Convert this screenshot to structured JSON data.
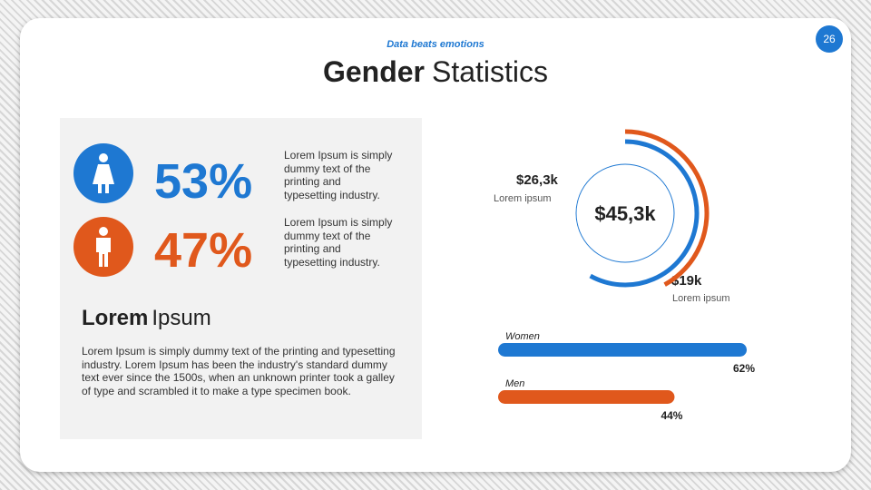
{
  "slide_number": "26",
  "header": {
    "subtitle": "Data beats emotions",
    "title_bold": "Gender",
    "title_light": "Statistics"
  },
  "stats": [
    {
      "percent": "53%",
      "text": "Lorem Ipsum is simply dummy text of the printing and typesetting industry."
    },
    {
      "percent": "47%",
      "text": "Lorem Ipsum is simply dummy text of the printing and typesetting industry."
    }
  ],
  "section": {
    "title_bold": "Lorem",
    "title_light": "Ipsum",
    "body": "Lorem Ipsum is simply dummy text of the printing and typesetting industry. Lorem Ipsum has been the industry's standard dummy text ever since the 1500s, when an unknown printer took a galley of type and scrambled it to make a type specimen book."
  },
  "donut": {
    "total": {
      "value": 45.3,
      "label": "$45,3k"
    },
    "segments": [
      {
        "value": 26.3,
        "label": "$26,3k",
        "caption": "Lorem ipsum",
        "color": "#1e78d2"
      },
      {
        "value": 19,
        "label": "$19k",
        "caption": "Lorem ipsum",
        "color": "#e0581c"
      }
    ]
  },
  "bars": {
    "xlim": [
      0,
      100
    ],
    "series": [
      {
        "name": "Women",
        "value": 62,
        "label": "62%",
        "color": "#1e78d2"
      },
      {
        "name": "Men",
        "value": 44,
        "label": "44%",
        "color": "#e0581c"
      }
    ]
  }
}
